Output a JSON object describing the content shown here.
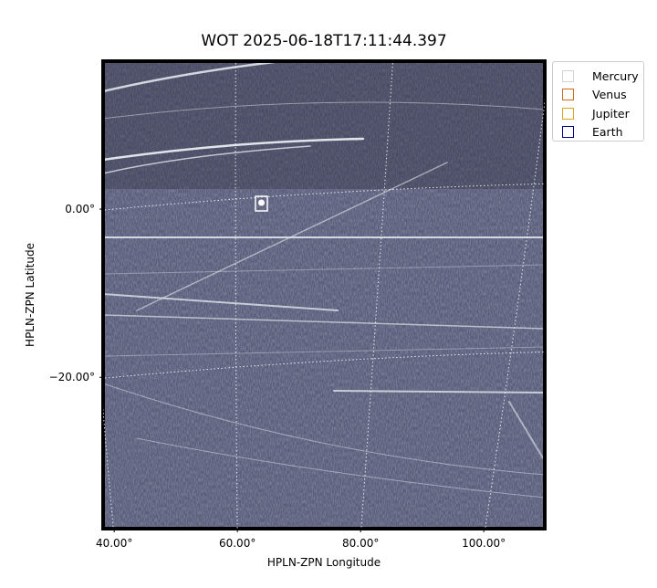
{
  "chart_data": {
    "type": "image",
    "title": "WOT 2025-06-18T17:11:44.397",
    "x_label": "HPLN-ZPN Longitude",
    "y_label": "HPLN-ZPN Latitude",
    "xlim": [
      38.2,
      109.9
    ],
    "ylim": [
      -38,
      17.6
    ],
    "xticks": [
      {
        "value": 40,
        "label": "40.00°"
      },
      {
        "value": 60,
        "label": "60.00°"
      },
      {
        "value": 80,
        "label": "80.00°"
      },
      {
        "value": 100,
        "label": "100.00°"
      }
    ],
    "yticks": [
      {
        "value": 0,
        "label": "0.00°"
      },
      {
        "value": -20,
        "label": "−20.00°"
      }
    ],
    "grid": true,
    "legend": {
      "position": "outside upper right",
      "items": [
        {
          "name": "Mercury",
          "color": "#d3d3d3"
        },
        {
          "name": "Venus",
          "color": "#d2691e"
        },
        {
          "name": "Jupiter",
          "color": "#daa520"
        },
        {
          "name": "Earth",
          "color": "#000080"
        }
      ]
    }
  }
}
